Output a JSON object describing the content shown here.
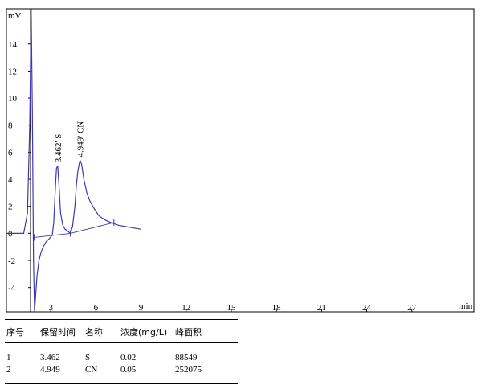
{
  "chart_data": {
    "type": "line",
    "title": "",
    "xlabel": "min",
    "ylabel": "mV",
    "xlim": [
      0,
      31.5
    ],
    "ylim": [
      -5.8,
      16.6
    ],
    "x_ticks": [
      3,
      6,
      9,
      12,
      15,
      18,
      21,
      24,
      27
    ],
    "x_tick_labels": [
      "3",
      "6",
      "9",
      "12",
      "15",
      "18",
      "21",
      "24",
      "27"
    ],
    "y_ticks": [
      -4,
      -2,
      0,
      2,
      4,
      6,
      8,
      10,
      12,
      14
    ],
    "y_tick_labels": [
      "-4",
      "-2",
      "0",
      "2",
      "4",
      "6",
      "8",
      "10",
      "12",
      "14"
    ],
    "grid": false,
    "line_color": "#3b3bb0",
    "series": [
      {
        "x": [
          0,
          0.6,
          1.2,
          1.45,
          1.6,
          1.7,
          1.78,
          1.85,
          1.92,
          2.0,
          2.08,
          2.2,
          2.35,
          2.5,
          2.7,
          2.9,
          3.1,
          3.2,
          3.3,
          3.38,
          3.46,
          3.55,
          3.65,
          3.8,
          3.95,
          4.1,
          4.3,
          4.45,
          4.6,
          4.7,
          4.8,
          4.9,
          4.95,
          5.05,
          5.2,
          5.4,
          5.6,
          5.9,
          6.2,
          6.6,
          7.0,
          7.5,
          8.0,
          8.5,
          9.0
        ],
        "y": [
          0,
          0,
          0,
          1.5,
          8,
          17,
          9,
          -2,
          -5.8,
          -4.5,
          -3.2,
          -2.1,
          -1.4,
          -1.0,
          -0.6,
          -0.4,
          -0.1,
          0.8,
          3.2,
          4.8,
          5.0,
          3.5,
          1.5,
          0.6,
          0.3,
          0.2,
          0.0,
          0.5,
          2.0,
          3.5,
          4.6,
          5.2,
          5.4,
          5.1,
          4.0,
          3.0,
          2.4,
          1.8,
          1.3,
          1.0,
          0.8,
          0.6,
          0.5,
          0.4,
          0.3
        ]
      }
    ],
    "baseline": {
      "x": [
        1.9,
        4.3,
        7.2
      ],
      "y": [
        -0.3,
        0.0,
        0.8
      ]
    },
    "annotations": [
      {
        "label": "3.462' S",
        "x": 3.462,
        "y": 5.0
      },
      {
        "label": "4.949' CN",
        "x": 4.949,
        "y": 5.4
      }
    ]
  },
  "table": {
    "headers": [
      "序号",
      "保留时间",
      "名称",
      "浓度(mg/L)",
      "峰面积"
    ],
    "rows": [
      [
        "1",
        "3.462",
        "S",
        "0.02",
        "88549"
      ],
      [
        "2",
        "4.949",
        "CN",
        "0.05",
        "252075"
      ]
    ]
  }
}
